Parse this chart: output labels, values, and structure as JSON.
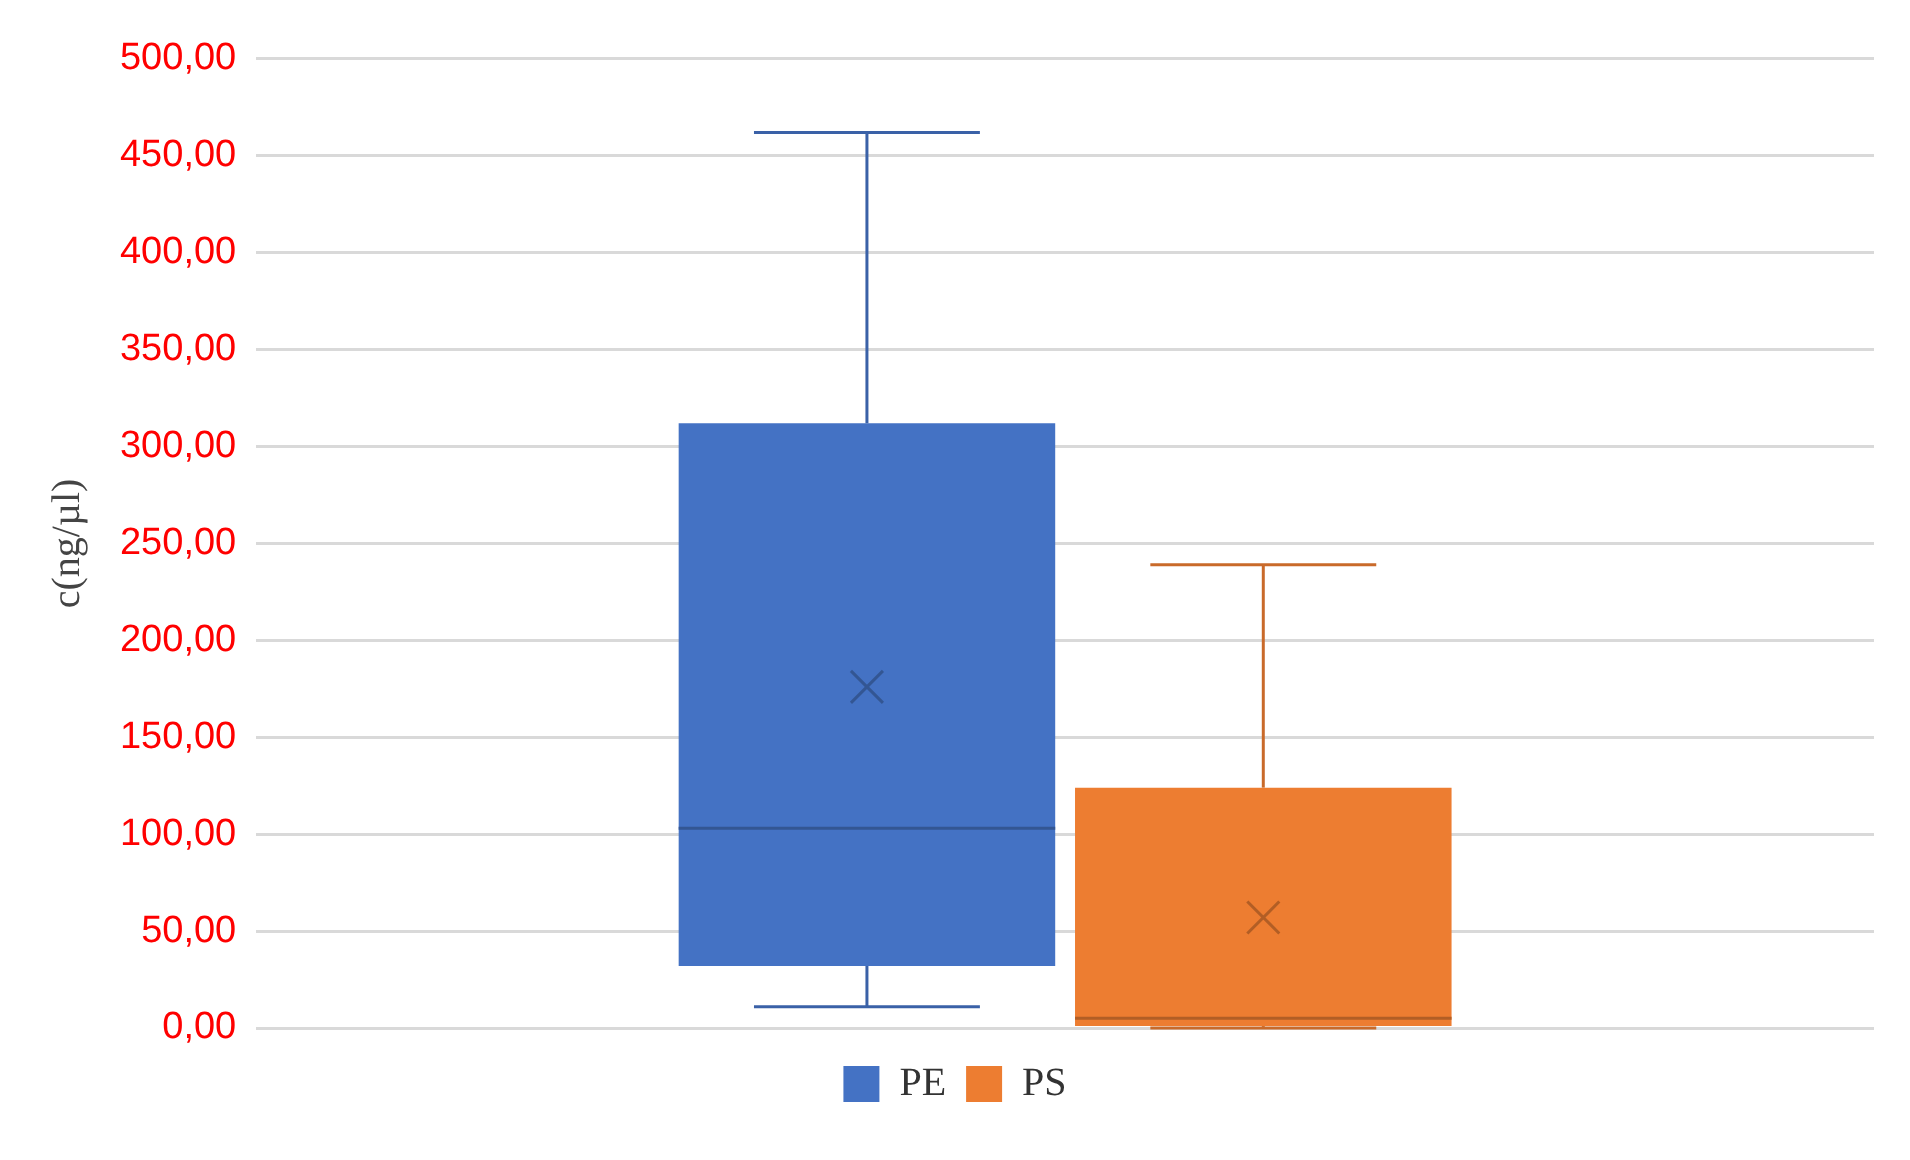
{
  "chart_data": {
    "type": "box",
    "ylabel": "c(ng/µl)",
    "categories": [
      null
    ],
    "series": [
      {
        "name": "PE",
        "color": "#4472c4",
        "boxes": [
          {
            "low": 11,
            "q1": 32,
            "median": 103,
            "q3": 312,
            "high": 462,
            "mean": 176
          }
        ]
      },
      {
        "name": "PS",
        "color": "#ed7d31",
        "boxes": [
          {
            "low": 0,
            "q1": 1,
            "median": 5,
            "q3": 124,
            "high": 239,
            "mean": 57
          }
        ]
      }
    ],
    "ylim": [
      0,
      500
    ],
    "yticks": [
      {
        "value": 0,
        "label": "0,00"
      },
      {
        "value": 50,
        "label": "50,00"
      },
      {
        "value": 100,
        "label": "100,00"
      },
      {
        "value": 150,
        "label": "150,00"
      },
      {
        "value": 200,
        "label": "200,00"
      },
      {
        "value": 250,
        "label": "250,00"
      },
      {
        "value": 300,
        "label": "300,00"
      },
      {
        "value": 350,
        "label": "350,00"
      },
      {
        "value": 400,
        "label": "400,00"
      },
      {
        "value": 450,
        "label": "450,00"
      },
      {
        "value": 500,
        "label": "500,00"
      }
    ],
    "grid": "y",
    "legend": "bottom"
  }
}
